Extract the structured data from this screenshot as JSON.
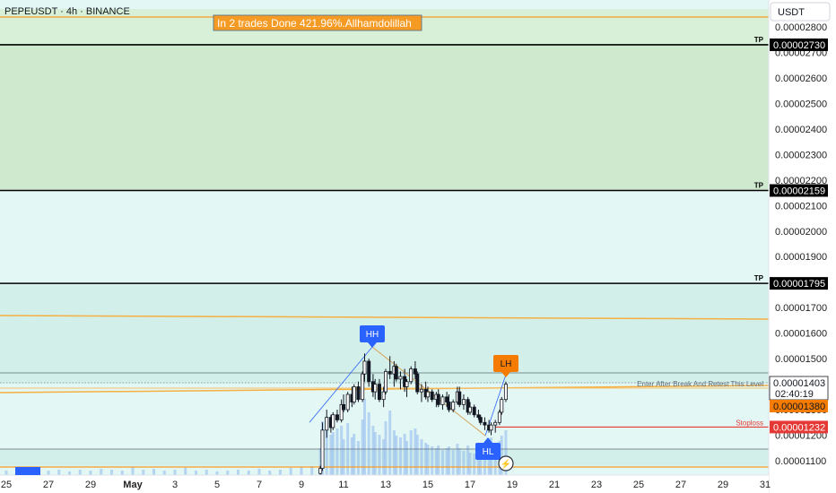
{
  "header": {
    "symbol_line": "PEPEUSDT · 4h · BINANCE",
    "banner": "In 2 trades Done 421.96%.Allhamdolillah",
    "currency": "USDT"
  },
  "chart_data": {
    "type": "candlestick",
    "symbol": "PEPEUSDT",
    "interval": "4h",
    "exchange": "BINANCE",
    "quote_currency": "USDT",
    "y_ticks": [
      1.1e-05,
      1.2e-05,
      1.3e-05,
      1.4e-05,
      1.5e-05,
      1.6e-05,
      1.7e-05,
      1.8e-05,
      1.9e-05,
      2e-05,
      2.1e-05,
      2.2e-05,
      2.3e-05,
      2.4e-05,
      2.5e-05,
      2.6e-05,
      2.7e-05,
      2.8e-05
    ],
    "y_tick_labels": [
      "0.00001100",
      "0.00001200",
      "0.00001300",
      "0.00001400",
      "0.00001500",
      "0.00001600",
      "0.00001700",
      "0.00001800",
      "0.00001900",
      "0.00002000",
      "0.00002100",
      "0.00002200",
      "0.00002300",
      "0.00002400",
      "0.00002500",
      "0.00002600",
      "0.00002700",
      "0.00002800"
    ],
    "ylim": [
      1.05e-05,
      2.87e-05
    ],
    "x_ticks": [
      25,
      27,
      29,
      "May",
      3,
      5,
      7,
      9,
      11,
      13,
      15,
      17,
      19,
      21,
      23,
      25,
      27,
      29,
      31
    ],
    "x_tick_labels": [
      "25",
      "27",
      "29",
      "May",
      "3",
      "5",
      "7",
      "9",
      "11",
      "13",
      "15",
      "17",
      "19",
      "21",
      "23",
      "25",
      "27",
      "29",
      "31"
    ],
    "x_range_days": [
      -6.2,
      31.7
    ],
    "levels": [
      {
        "label": "TP",
        "price": 2.73e-05,
        "price_label": "0.00002730",
        "color": "#000000"
      },
      {
        "label": "TP",
        "price": 2.159e-05,
        "price_label": "0.00002159",
        "color": "#000000"
      },
      {
        "label": "TP",
        "price": 1.795e-05,
        "price_label": "0.00001795",
        "color": "#000000"
      },
      {
        "label": "Stoploss",
        "price": 1.232e-05,
        "price_label": "0.00001232",
        "color": "#e53935"
      }
    ],
    "entry_note": "Enter After Break And Retest This Level",
    "current_price": {
      "price": 1.403e-05,
      "label": "0.00001403",
      "countdown": "02:40:19"
    },
    "extra_price": {
      "price": 1.38e-05,
      "label": "0.00001380",
      "color": "#f57c00"
    },
    "swing_labels": [
      {
        "text": "HH",
        "day": 10.6,
        "price": 1.52e-05,
        "color": "#2962ff"
      },
      {
        "text": "HL",
        "day": 17.3,
        "price": 1.22e-05,
        "color": "#2962ff"
      },
      {
        "text": "LH",
        "day": 18.2,
        "price": 1.43e-05,
        "color": "#f57c00"
      }
    ],
    "candles": [
      [
        8.9,
        1.05e-05,
        1.08e-05,
        1.04e-05,
        1.07e-05
      ],
      [
        9.0,
        1.07e-05,
        1.25e-05,
        1.06e-05,
        1.22e-05
      ],
      [
        9.2,
        1.22e-05,
        1.3e-05,
        1.19e-05,
        1.27e-05
      ],
      [
        9.4,
        1.27e-05,
        1.28e-05,
        1.21e-05,
        1.23e-05
      ],
      [
        9.5,
        1.23e-05,
        1.29e-05,
        1.22e-05,
        1.28e-05
      ],
      [
        9.7,
        1.28e-05,
        1.3e-05,
        1.25e-05,
        1.26e-05
      ],
      [
        9.9,
        1.26e-05,
        1.34e-05,
        1.25e-05,
        1.32e-05
      ],
      [
        10.0,
        1.32e-05,
        1.36e-05,
        1.29e-05,
        1.3e-05
      ],
      [
        10.2,
        1.3e-05,
        1.37e-05,
        1.29e-05,
        1.36e-05
      ],
      [
        10.4,
        1.36e-05,
        1.39e-05,
        1.31e-05,
        1.33e-05
      ],
      [
        10.5,
        1.33e-05,
        1.4e-05,
        1.32e-05,
        1.39e-05
      ],
      [
        10.7,
        1.39e-05,
        1.41e-05,
        1.33e-05,
        1.34e-05
      ],
      [
        10.9,
        1.34e-05,
        1.45e-05,
        1.33e-05,
        1.44e-05
      ],
      [
        11.0,
        1.44e-05,
        1.52e-05,
        1.41e-05,
        1.49e-05
      ],
      [
        11.2,
        1.49e-05,
        1.5e-05,
        1.39e-05,
        1.41e-05
      ],
      [
        11.4,
        1.41e-05,
        1.44e-05,
        1.35e-05,
        1.37e-05
      ],
      [
        11.5,
        1.37e-05,
        1.42e-05,
        1.34e-05,
        1.4e-05
      ],
      [
        11.7,
        1.4e-05,
        1.42e-05,
        1.33e-05,
        1.34e-05
      ],
      [
        11.9,
        1.34e-05,
        1.39e-05,
        1.31e-05,
        1.37e-05
      ],
      [
        12.0,
        1.37e-05,
        1.46e-05,
        1.36e-05,
        1.45e-05
      ],
      [
        12.2,
        1.45e-05,
        1.51e-05,
        1.42e-05,
        1.44e-05
      ],
      [
        12.4,
        1.44e-05,
        1.49e-05,
        1.39e-05,
        1.47e-05
      ],
      [
        12.5,
        1.47e-05,
        1.48e-05,
        1.41e-05,
        1.42e-05
      ],
      [
        12.7,
        1.42e-05,
        1.45e-05,
        1.38e-05,
        1.43e-05
      ],
      [
        12.9,
        1.43e-05,
        1.46e-05,
        1.37e-05,
        1.39e-05
      ],
      [
        13.0,
        1.39e-05,
        1.42e-05,
        1.35e-05,
        1.41e-05
      ],
      [
        13.2,
        1.41e-05,
        1.47e-05,
        1.4e-05,
        1.46e-05
      ],
      [
        13.4,
        1.46e-05,
        1.49e-05,
        1.42e-05,
        1.44e-05
      ],
      [
        13.5,
        1.44e-05,
        1.45e-05,
        1.36e-05,
        1.37e-05
      ],
      [
        13.7,
        1.37e-05,
        1.4e-05,
        1.33e-05,
        1.38e-05
      ],
      [
        13.9,
        1.38e-05,
        1.41e-05,
        1.34e-05,
        1.35e-05
      ],
      [
        14.0,
        1.35e-05,
        1.39e-05,
        1.33e-05,
        1.37e-05
      ],
      [
        14.2,
        1.37e-05,
        1.38e-05,
        1.33e-05,
        1.34e-05
      ],
      [
        14.4,
        1.34e-05,
        1.37e-05,
        1.31e-05,
        1.36e-05
      ],
      [
        14.5,
        1.36e-05,
        1.38e-05,
        1.31e-05,
        1.32e-05
      ],
      [
        14.7,
        1.32e-05,
        1.36e-05,
        1.3e-05,
        1.35e-05
      ],
      [
        14.9,
        1.35e-05,
        1.37e-05,
        1.31e-05,
        1.33e-05
      ],
      [
        15.0,
        1.33e-05,
        1.36e-05,
        1.29e-05,
        1.3e-05
      ],
      [
        15.2,
        1.3e-05,
        1.34e-05,
        1.29e-05,
        1.33e-05
      ],
      [
        15.4,
        1.33e-05,
        1.39e-05,
        1.32e-05,
        1.37e-05
      ],
      [
        15.5,
        1.37e-05,
        1.39e-05,
        1.31e-05,
        1.32e-05
      ],
      [
        15.7,
        1.32e-05,
        1.36e-05,
        1.3e-05,
        1.34e-05
      ],
      [
        15.9,
        1.34e-05,
        1.35e-05,
        1.28e-05,
        1.29e-05
      ],
      [
        16.0,
        1.29e-05,
        1.33e-05,
        1.28e-05,
        1.31e-05
      ],
      [
        16.2,
        1.31e-05,
        1.32e-05,
        1.27e-05,
        1.28e-05
      ],
      [
        16.4,
        1.28e-05,
        1.3e-05,
        1.26e-05,
        1.27e-05
      ],
      [
        16.5,
        1.27e-05,
        1.28e-05,
        1.24e-05,
        1.25e-05
      ],
      [
        16.7,
        1.25e-05,
        1.27e-05,
        1.22e-05,
        1.24e-05
      ],
      [
        16.9,
        1.24e-05,
        1.26e-05,
        1.21e-05,
        1.22e-05
      ],
      [
        17.0,
        1.22e-05,
        1.25e-05,
        1.2e-05,
        1.24e-05
      ],
      [
        17.2,
        1.24e-05,
        1.26e-05,
        1.21e-05,
        1.25e-05
      ],
      [
        17.4,
        1.25e-05,
        1.3e-05,
        1.24e-05,
        1.29e-05
      ],
      [
        17.5,
        1.29e-05,
        1.35e-05,
        1.28e-05,
        1.34e-05
      ],
      [
        17.7,
        1.34e-05,
        1.41e-05,
        1.33e-05,
        1.4e-05
      ]
    ],
    "volume": [
      [
        -6.0,
        5
      ],
      [
        -5.5,
        7
      ],
      [
        -5.0,
        6
      ],
      [
        -4.5,
        8
      ],
      [
        -4.0,
        5
      ],
      [
        -3.5,
        6
      ],
      [
        -3.0,
        4
      ],
      [
        -2.5,
        6
      ],
      [
        -2.0,
        5
      ],
      [
        -1.5,
        7
      ],
      [
        -1.0,
        6
      ],
      [
        -0.5,
        5
      ],
      [
        0.0,
        9
      ],
      [
        0.5,
        6
      ],
      [
        1.0,
        7
      ],
      [
        1.5,
        5
      ],
      [
        2.0,
        6
      ],
      [
        2.5,
        8
      ],
      [
        3.0,
        5
      ],
      [
        3.5,
        6
      ],
      [
        4.0,
        4
      ],
      [
        4.5,
        5
      ],
      [
        5.0,
        6
      ],
      [
        5.5,
        5
      ],
      [
        6.0,
        7
      ],
      [
        6.5,
        5
      ],
      [
        7.0,
        6
      ],
      [
        7.5,
        8
      ],
      [
        8.0,
        9
      ],
      [
        8.5,
        10
      ],
      [
        8.9,
        30
      ],
      [
        9.0,
        60
      ],
      [
        9.2,
        50
      ],
      [
        9.4,
        45
      ],
      [
        9.5,
        48
      ],
      [
        9.7,
        52
      ],
      [
        9.9,
        55
      ],
      [
        10.0,
        40
      ],
      [
        10.2,
        58
      ],
      [
        10.4,
        42
      ],
      [
        10.5,
        46
      ],
      [
        10.7,
        38
      ],
      [
        10.9,
        62
      ],
      [
        11.0,
        85
      ],
      [
        11.2,
        70
      ],
      [
        11.4,
        55
      ],
      [
        11.5,
        48
      ],
      [
        11.7,
        45
      ],
      [
        11.9,
        40
      ],
      [
        12.0,
        60
      ],
      [
        12.2,
        72
      ],
      [
        12.4,
        50
      ],
      [
        12.5,
        44
      ],
      [
        12.7,
        42
      ],
      [
        12.9,
        46
      ],
      [
        13.0,
        38
      ],
      [
        13.2,
        50
      ],
      [
        13.4,
        52
      ],
      [
        13.5,
        45
      ],
      [
        13.7,
        40
      ],
      [
        13.9,
        36
      ],
      [
        14.0,
        34
      ],
      [
        14.2,
        32
      ],
      [
        14.4,
        30
      ],
      [
        14.5,
        33
      ],
      [
        14.7,
        28
      ],
      [
        14.9,
        30
      ],
      [
        15.0,
        32
      ],
      [
        15.2,
        28
      ],
      [
        15.4,
        35
      ],
      [
        15.5,
        30
      ],
      [
        15.7,
        27
      ],
      [
        15.9,
        33
      ],
      [
        16.0,
        25
      ],
      [
        16.2,
        24
      ],
      [
        16.4,
        26
      ],
      [
        16.5,
        30
      ],
      [
        16.7,
        32
      ],
      [
        16.9,
        40
      ],
      [
        17.0,
        42
      ],
      [
        17.2,
        36
      ],
      [
        17.4,
        38
      ],
      [
        17.5,
        44
      ],
      [
        17.7,
        50
      ]
    ],
    "grid": false
  }
}
